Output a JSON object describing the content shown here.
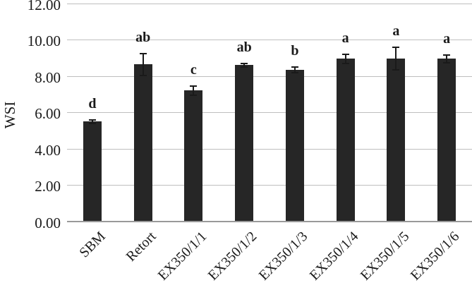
{
  "chart_data": {
    "type": "bar",
    "title": "",
    "xlabel": "",
    "ylabel": "WSI",
    "categories": [
      "SBM",
      "Retort",
      "EX350/1/1",
      "EX350/1/2",
      "EX350/1/3",
      "EX350/1/4",
      "EX350/1/5",
      "EX350/1/6"
    ],
    "series": [
      {
        "name": "WSI",
        "values": [
          5.5,
          8.65,
          7.2,
          8.6,
          8.35,
          8.95,
          8.95,
          8.95
        ],
        "errors": [
          0.1,
          0.6,
          0.25,
          0.1,
          0.15,
          0.25,
          0.62,
          0.22
        ],
        "significance_letters": [
          "d",
          "ab",
          "c",
          "ab",
          "b",
          "a",
          "a",
          "a"
        ]
      }
    ],
    "ylim": [
      0,
      12
    ],
    "ytick_step": 2,
    "ytick_labels": [
      "0.00",
      "2.00",
      "4.00",
      "6.00",
      "8.00",
      "10.00",
      "12.00"
    ],
    "grid": "horizontal",
    "legend": "none",
    "colors": {
      "bar": "#262626",
      "gridline": "#bfbfbf",
      "axis_line": "#999999",
      "text": "#1a1a1a",
      "error_bar": "#1a1a1a",
      "background": "#ffffff"
    }
  }
}
